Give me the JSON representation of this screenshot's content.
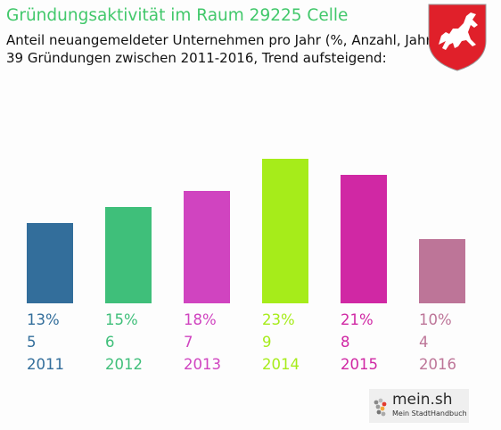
{
  "header": {
    "title": "Gründungsaktivität im Raum 29225 Celle",
    "subtitle_1": "Anteil neuangemeldeter Unternehmen pro Jahr (%, Anzahl, Jahr)",
    "subtitle_2": "39 Gründungen zwischen 2011-2016, Trend aufsteigend:"
  },
  "logo": {
    "brand": "mein.sh",
    "tagline": "Mein StadtHandbuch"
  },
  "colors": {
    "title": "#42c86b",
    "logo_dot": "#e23b2e"
  },
  "chart_data": {
    "type": "bar",
    "title": "Gründungsaktivität im Raum 29225 Celle",
    "categories": [
      "2011",
      "2012",
      "2013",
      "2014",
      "2015",
      "2016"
    ],
    "percent_labels": [
      "13%",
      "15%",
      "18%",
      "23%",
      "21%",
      "10%"
    ],
    "values": [
      5,
      6,
      7,
      9,
      8,
      4
    ],
    "colors": [
      "#336e9b",
      "#3fbf7a",
      "#d044c0",
      "#a6ec1a",
      "#d028a4",
      "#bd7598"
    ],
    "ylim": [
      0,
      9
    ]
  }
}
